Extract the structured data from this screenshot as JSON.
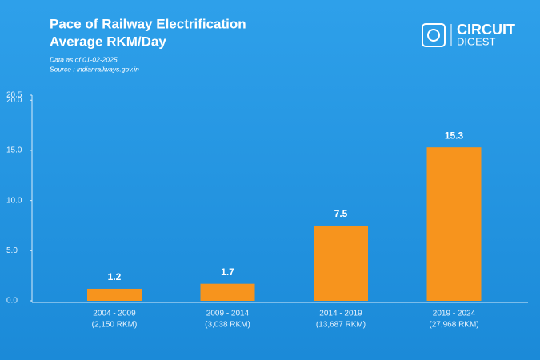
{
  "chart_data": {
    "type": "bar",
    "title": "Pace of Railway Electrification",
    "subtitle": "Average RKM/Day",
    "notes": [
      "Data as of 01-02-2025",
      "Source : indianrailways.gov.in"
    ],
    "categories": [
      [
        "2004 - 2009",
        "(2,150 RKM)"
      ],
      [
        "2009 - 2014",
        "(3,038 RKM)"
      ],
      [
        "2014 - 2019",
        "(13,687 RKM)"
      ],
      [
        "2019 - 2024",
        "(27,968 RKM)"
      ]
    ],
    "values": [
      1.2,
      1.7,
      7.5,
      15.3
    ],
    "color": "#f7941d",
    "ylim": [
      0,
      20.5
    ],
    "yticks": [
      {
        "value": 0,
        "label": "0.0"
      },
      {
        "value": 5,
        "label": "5.0"
      },
      {
        "value": 10,
        "label": "10.0"
      },
      {
        "value": 15,
        "label": "15.0"
      },
      {
        "value": 20,
        "label": "20.0"
      },
      20.5
    ],
    "grid": false
  },
  "logo": {
    "line1": "CIRCUIT",
    "line2": "DIGEST"
  }
}
